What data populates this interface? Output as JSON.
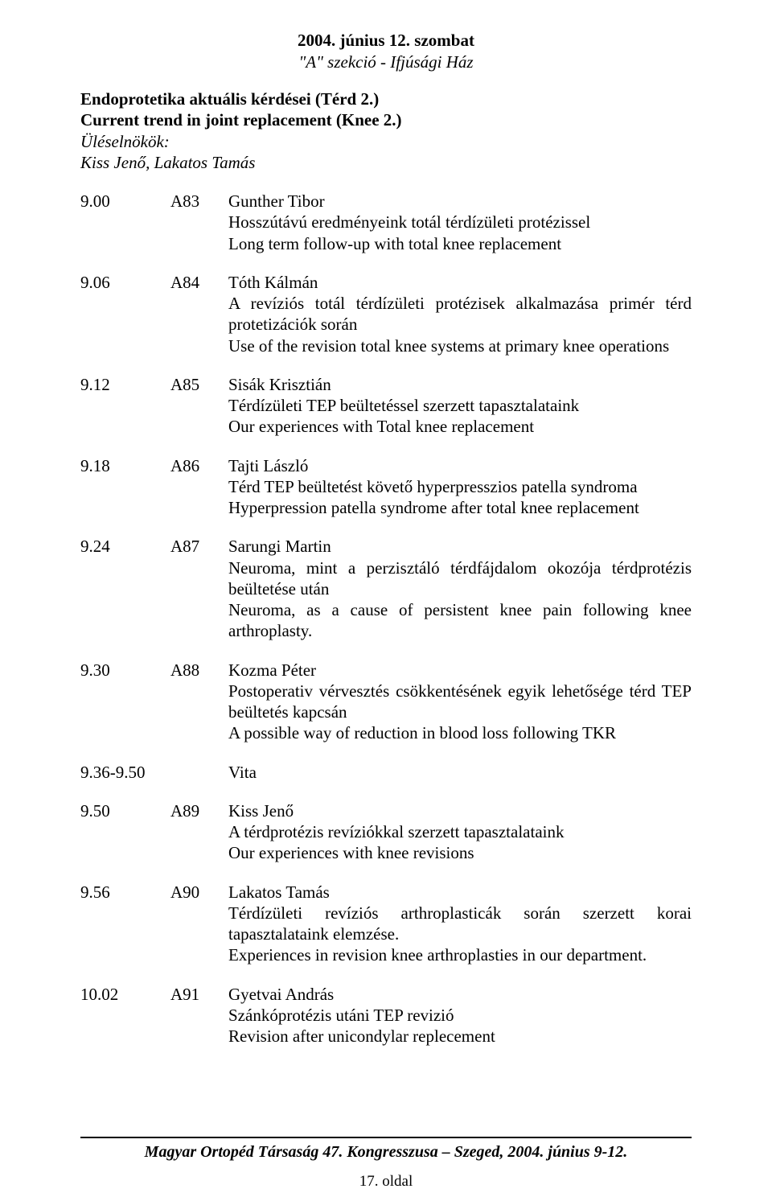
{
  "header": {
    "date": "2004. június 12. szombat",
    "section": "\"A\" szekció - Ifjúsági Ház"
  },
  "session": {
    "title_hu": "Endoprotetika aktuális kérdései (Térd 2.)",
    "title_en": "Current trend in joint replacement (Knee 2.)",
    "chairs_label": "Üléselnökök:",
    "chairs_names": "Kiss Jenő, Lakatos Tamás"
  },
  "entries": [
    {
      "time": "9.00",
      "code": "A83",
      "author": "Gunther Tibor",
      "title_hu": "Hosszútávú eredményeink totál térdízületi protézissel",
      "title_en": "Long term follow-up with total knee replacement"
    },
    {
      "time": "9.06",
      "code": "A84",
      "author": "Tóth Kálmán",
      "title_hu": "A revíziós totál térdízületi protézisek alkalmazása primér térd protetizációk során",
      "title_en": "Use of the revision total knee systems at primary knee operations"
    },
    {
      "time": "9.12",
      "code": "A85",
      "author": "Sisák Krisztián",
      "title_hu": "Térdízületi TEP beültetéssel szerzett tapasztalataink",
      "title_en": "Our experiences with Total knee replacement"
    },
    {
      "time": "9.18",
      "code": "A86",
      "author": "Tajti László",
      "title_hu": "Térd TEP beültetést követő hyperpresszios patella syndroma",
      "title_en": "Hyperpression patella syndrome after total knee replacement"
    },
    {
      "time": "9.24",
      "code": "A87",
      "author": "Sarungi Martin",
      "title_hu": "Neuroma, mint a perzisztáló térdfájdalom okozója térdprotézis beültetése után",
      "title_en": "Neuroma, as a cause of persistent knee pain following knee arthroplasty."
    },
    {
      "time": "9.30",
      "code": "A88",
      "author": "Kozma Péter",
      "title_hu": "Postoperativ vérvesztés csökkentésének egyik lehetősége térd TEP beültetés kapcsán",
      "title_en": "A possible way of reduction in blood loss following TKR"
    }
  ],
  "vita": {
    "time": "9.36-9.50",
    "label": "Vita"
  },
  "entries2": [
    {
      "time": "9.50",
      "code": "A89",
      "author": "Kiss Jenő",
      "title_hu": "A térdprotézis revíziókkal szerzett tapasztalataink",
      "title_en": "Our experiences with knee revisions"
    },
    {
      "time": "9.56",
      "code": "A90",
      "author": "Lakatos Tamás",
      "title_hu": "Térdízületi revíziós arthroplasticák során szerzett korai tapasztalataink elemzése.",
      "title_en": "Experiences in revision knee arthroplasties in our department."
    },
    {
      "time": "10.02",
      "code": "A91",
      "author": "Gyetvai András",
      "title_hu": "Szánkóprotézis utáni TEP revizió",
      "title_en": "Revision after unicondylar replecement"
    }
  ],
  "footer": {
    "text": "Magyar Ortopéd Társaság 47. Kongresszusa – Szeged, 2004. június 9-12.",
    "page": "17. oldal"
  }
}
